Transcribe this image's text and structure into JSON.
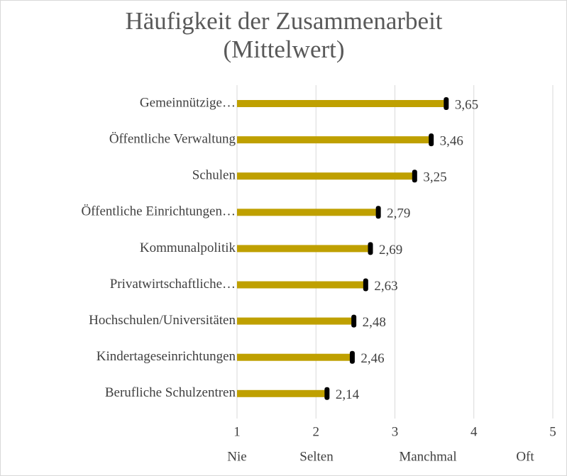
{
  "chart_data": {
    "type": "bar",
    "orientation": "horizontal",
    "title": "Häufigkeit der Zusammenarbeit (Mittelwert)",
    "categories": [
      "Gemeinnützige…",
      "Öffentliche Verwaltung",
      "Schulen",
      "Öffentliche Einrichtungen…",
      "Kommunalpolitik",
      "Privatwirtschaftliche…",
      "Hochschulen/Universitäten",
      "Kindertageseinrichtungen",
      "Berufliche Schulzentren"
    ],
    "values": [
      3.65,
      3.46,
      3.25,
      2.79,
      2.69,
      2.63,
      2.48,
      2.46,
      2.14
    ],
    "value_labels": [
      "3,65",
      "3,46",
      "3,25",
      "2,79",
      "2,69",
      "2,63",
      "2,48",
      "2,46",
      "2,14"
    ],
    "color": "#bfa000",
    "marker_color": "#000000",
    "xlim": [
      1,
      5
    ],
    "xticks": [
      1,
      2,
      3,
      4,
      5
    ],
    "grid": true,
    "scale_labels": [
      "Nie",
      "Selten",
      "Manchmal",
      "Oft"
    ]
  }
}
